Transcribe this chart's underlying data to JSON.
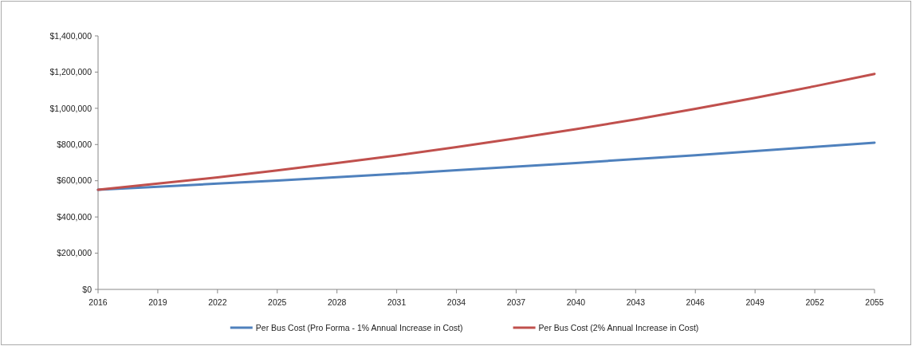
{
  "chart_data": {
    "type": "line",
    "x": [
      2016,
      2019,
      2022,
      2025,
      2028,
      2031,
      2034,
      2037,
      2040,
      2043,
      2046,
      2049,
      2052,
      2055
    ],
    "series": [
      {
        "name": "Per Bus Cost (Pro Forma - 1% Annual Increase in Cost)",
        "color": "#4f81bd",
        "values": [
          550000,
          567000,
          584000,
          601000,
          620000,
          638000,
          658000,
          678000,
          698000,
          720000,
          741000,
          764000,
          787000,
          810000
        ]
      },
      {
        "name": "Per Bus Cost (2% Annual Increase in Cost)",
        "color": "#c0504d",
        "values": [
          550000,
          584000,
          619000,
          657000,
          698000,
          740000,
          786000,
          834000,
          885000,
          939000,
          997000,
          1058000,
          1122000,
          1190000
        ]
      }
    ],
    "xlim": [
      2016,
      2055
    ],
    "xticks": [
      2016,
      2019,
      2022,
      2025,
      2028,
      2031,
      2034,
      2037,
      2040,
      2043,
      2046,
      2049,
      2052,
      2055
    ],
    "ylim": [
      0,
      1400000
    ],
    "yticks": [
      {
        "value": 0,
        "label": "$0"
      },
      {
        "value": 200000,
        "label": "$200,000"
      },
      {
        "value": 400000,
        "label": "$400,000"
      },
      {
        "value": 600000,
        "label": "$600,000"
      },
      {
        "value": 800000,
        "label": "$800,000"
      },
      {
        "value": 1000000,
        "label": "$1,000,000"
      },
      {
        "value": 1200000,
        "label": "$1,200,000"
      },
      {
        "value": 1400000,
        "label": "$1,400,000"
      }
    ],
    "grid": false,
    "legend": "bottom",
    "marker": "none",
    "line_style": "solid"
  }
}
